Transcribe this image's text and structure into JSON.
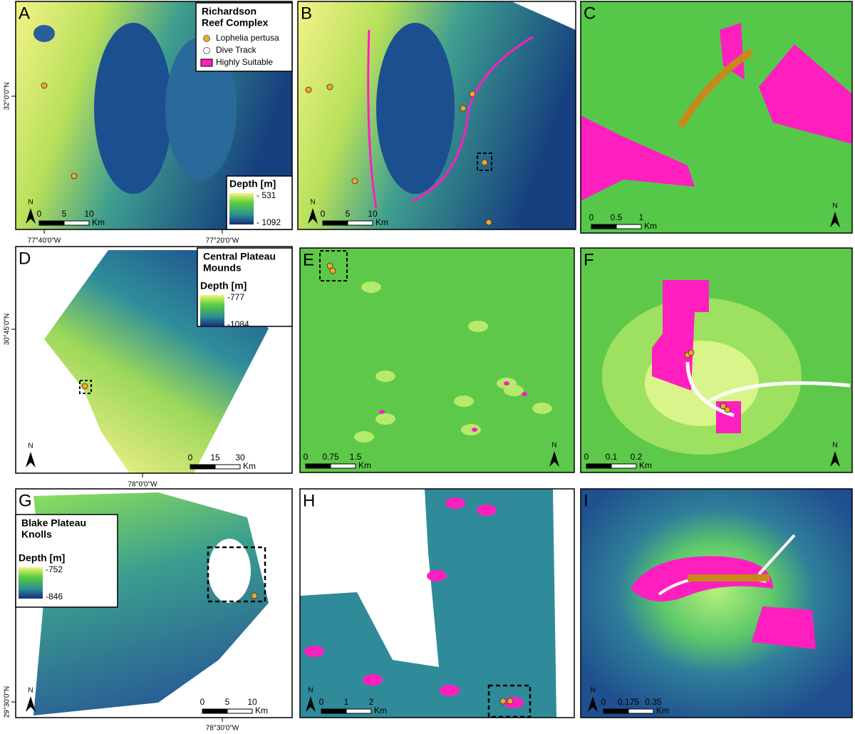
{
  "panels": [
    {
      "letter": "A",
      "scale": [
        "0",
        "5",
        "10",
        "Km"
      ],
      "north": "N",
      "legend": {
        "title": [
          "Richardson",
          "Reef Complex"
        ],
        "items": [
          "Lophelia pertusa",
          "Dive Track",
          "Highly Suitable"
        ]
      },
      "depth": {
        "title": "Depth [m]",
        "max": "- 531",
        "min": "- 1092"
      }
    },
    {
      "letter": "B",
      "scale": [
        "0",
        "5",
        "10",
        "Km"
      ],
      "north": "N"
    },
    {
      "letter": "C",
      "scale": [
        "0",
        "0.5",
        "1",
        "Km"
      ],
      "north": "N"
    },
    {
      "letter": "D",
      "scale": [
        "0",
        "15",
        "30",
        "Km"
      ],
      "north": "N",
      "legend": {
        "title": [
          "Central Plateau",
          "Mounds"
        ]
      },
      "depth": {
        "title": "Depth [m]",
        "max": "-777",
        "min": "-1084"
      }
    },
    {
      "letter": "E",
      "scale": [
        "0",
        "0.75",
        "1.5",
        "Km"
      ],
      "north": "N"
    },
    {
      "letter": "F",
      "scale": [
        "0",
        "0.1",
        "0.2",
        "Km"
      ],
      "north": "N"
    },
    {
      "letter": "G",
      "scale": [
        "0",
        "5",
        "10",
        "Km"
      ],
      "north": "N",
      "legend": {
        "title": [
          "Blake Plateau",
          "Knolls"
        ]
      },
      "depth": {
        "title": "Depth [m]",
        "max": "-752",
        "min": "-846"
      }
    },
    {
      "letter": "H",
      "scale": [
        "0",
        "1",
        "2",
        "Km"
      ],
      "north": "N"
    },
    {
      "letter": "I",
      "scale": [
        "0",
        "0.175",
        "0.35",
        "Km"
      ],
      "north": "N"
    }
  ],
  "coordinates": {
    "lat": [
      "32°0'0\"N",
      "30°45'0\"N",
      "29°30'0\"N"
    ],
    "lon": [
      "77°40'0\"W",
      "77°20'0\"W",
      "78°0'0\"W",
      "78°30'0\"W"
    ]
  }
}
